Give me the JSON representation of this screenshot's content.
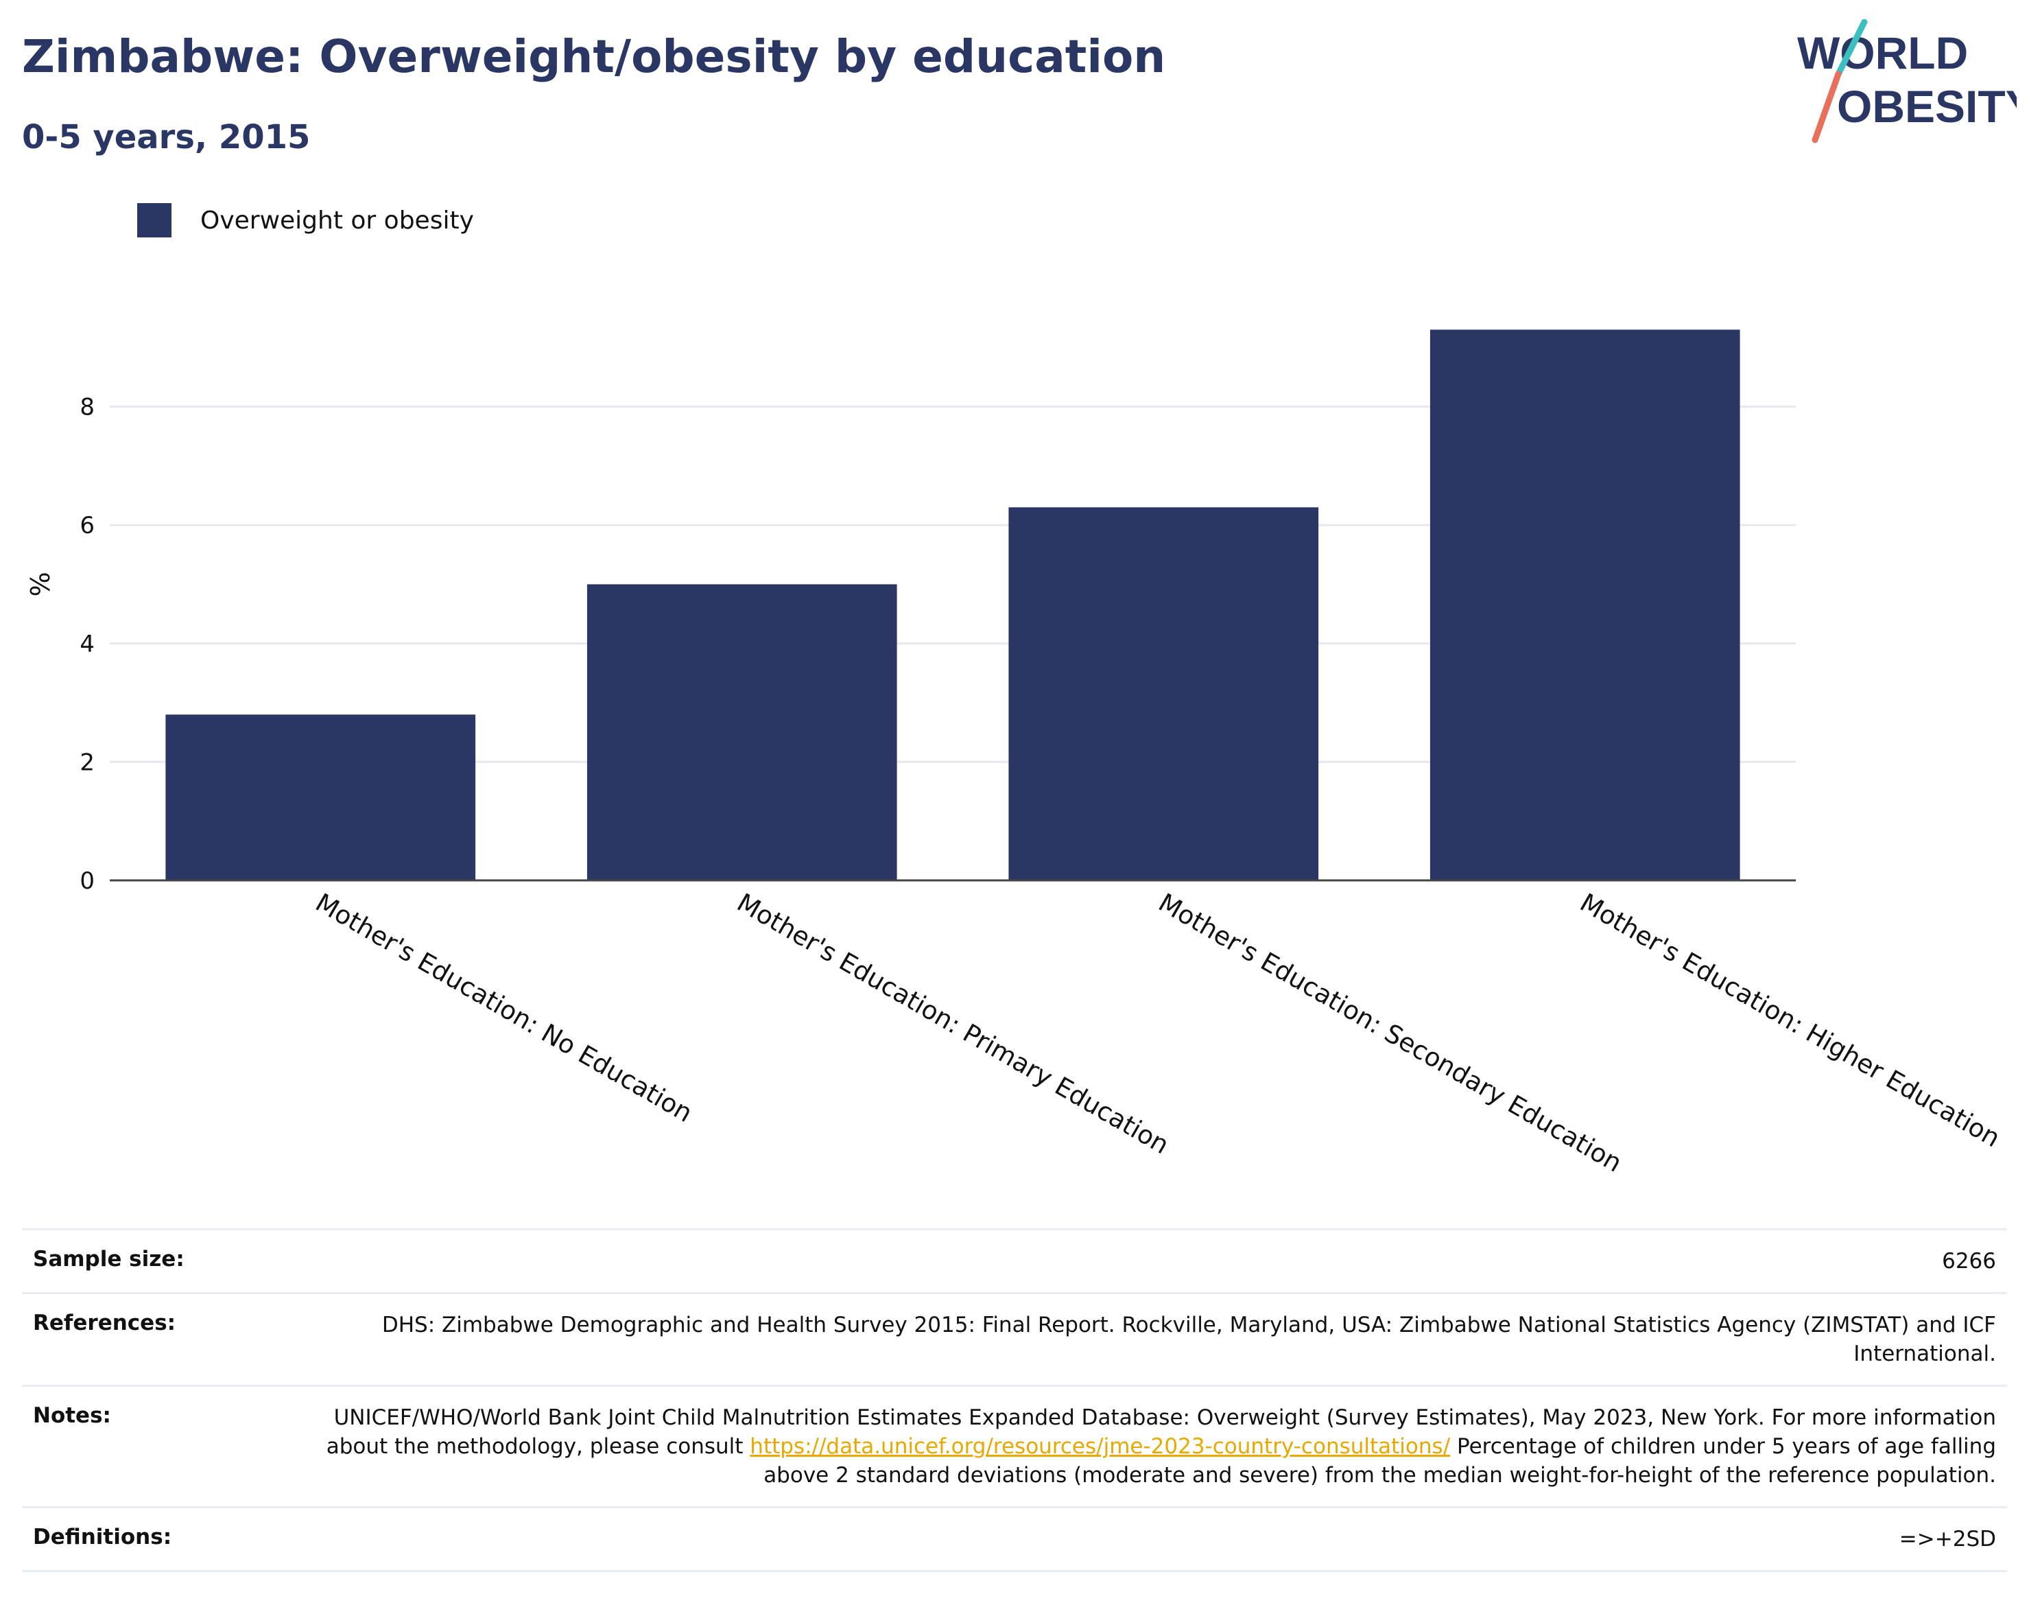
{
  "header": {
    "title": "Zimbabwe: Overweight/obesity by education",
    "subtitle": "0-5 years, 2015"
  },
  "logo": {
    "line1": "WORLD",
    "line2": "OBESITY",
    "colors": {
      "navy": "#2a3663",
      "teal": "#3bbfbf",
      "coral": "#e8705a"
    }
  },
  "legend": {
    "label": "Overweight or obesity",
    "color": "#2a3663"
  },
  "chart_data": {
    "type": "bar",
    "categories": [
      "Mother's Education: No Education",
      "Mother's Education: Primary Education",
      "Mother's Education: Secondary Education",
      "Mother's Education: Higher Education"
    ],
    "series": [
      {
        "name": "Overweight or obesity",
        "values": [
          2.8,
          5.0,
          6.3,
          9.3
        ],
        "color": "#2a3663"
      }
    ],
    "ylabel": "%",
    "xlabel": "",
    "ylim": [
      0,
      10
    ],
    "yticks": [
      0,
      2,
      4,
      6,
      8
    ],
    "grid": true,
    "legend_position": "top-left"
  },
  "info": {
    "sample_size_label": "Sample size:",
    "sample_size_value": "6266",
    "references_label": "References:",
    "references_value": "DHS: Zimbabwe Demographic and Health Survey 2015: Final Report. Rockville, Maryland, USA: Zimbabwe National Statistics Agency (ZIMSTAT) and ICF International.",
    "notes_label": "Notes:",
    "notes_text_1": "UNICEF/WHO/World Bank Joint Child Malnutrition Estimates Expanded Database: Overweight (Survey Estimates), May 2023, New York. For more information about the methodology, please consult ",
    "notes_link": "https://data.unicef.org/resources/jme-2023-country-consultations/",
    "notes_text_2": " Percentage of children under 5 years of age falling above 2 standard deviations (moderate and severe) from the median weight-for-height of the reference population.",
    "definitions_label": "Definitions:",
    "definitions_value": "=>+2SD"
  }
}
